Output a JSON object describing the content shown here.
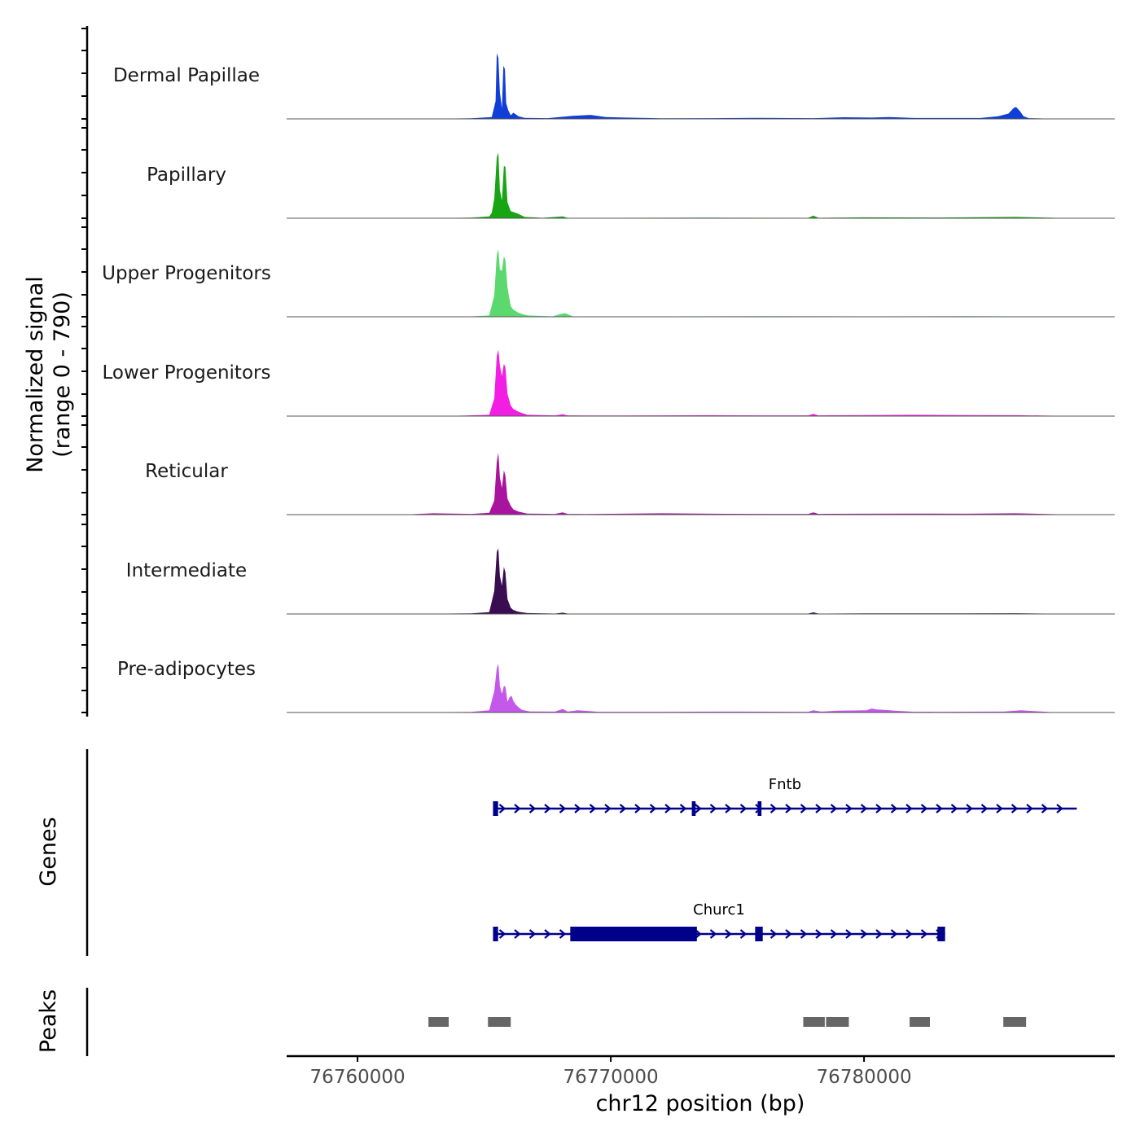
{
  "chart_data": {
    "type": "area",
    "title": "",
    "ylabel_line1": "Normalized signal",
    "ylabel_line2": "(range 0 - 790)",
    "ylim": [
      0,
      790
    ],
    "xlabel": "chr12 position (bp)",
    "xlim": [
      76757200,
      76789900
    ],
    "xticks": [
      76760000,
      76770000,
      76780000
    ],
    "xtick_labels": [
      "76760000",
      "76770000",
      "76780000"
    ],
    "tracks": [
      {
        "name": "Dermal Papillae",
        "color": "#0f3fd6",
        "x": [
          76762500,
          76763500,
          76764500,
          76765300,
          76765450,
          76765500,
          76765560,
          76765620,
          76765700,
          76765760,
          76765820,
          76765870,
          76765950,
          76766050,
          76766150,
          76766350,
          76766600,
          76767500,
          76768500,
          76769200,
          76769800,
          76772000,
          76774000,
          76775800,
          76778000,
          76779200,
          76780300,
          76781000,
          76782000,
          76784600,
          76785300,
          76785700,
          76785900,
          76786000,
          76786150,
          76786300,
          76786500,
          76787500
        ],
        "y": [
          3,
          4,
          6,
          20,
          200,
          740,
          690,
          300,
          120,
          600,
          560,
          180,
          100,
          40,
          70,
          30,
          12,
          8,
          35,
          45,
          20,
          6,
          8,
          12,
          8,
          18,
          15,
          20,
          10,
          10,
          30,
          60,
          120,
          135,
          90,
          30,
          8,
          3
        ]
      },
      {
        "name": "Papillary",
        "color": "#18a513",
        "x": [
          76762500,
          76763500,
          76764500,
          76765200,
          76765300,
          76765400,
          76765500,
          76765560,
          76765620,
          76765700,
          76765780,
          76765840,
          76765920,
          76766050,
          76766150,
          76766350,
          76766600,
          76767300,
          76768100,
          76768300,
          76770000,
          76774000,
          76777800,
          76778000,
          76778200,
          76780000,
          76783000,
          76786000,
          76788000
        ],
        "y": [
          3,
          4,
          6,
          20,
          60,
          220,
          690,
          740,
          320,
          200,
          590,
          580,
          180,
          80,
          70,
          50,
          15,
          5,
          20,
          5,
          5,
          6,
          5,
          30,
          5,
          10,
          8,
          15,
          3
        ]
      },
      {
        "name": "Upper Progenitors",
        "color": "#5bd86e",
        "x": [
          76762500,
          76764500,
          76765200,
          76765400,
          76765500,
          76765560,
          76765620,
          76765700,
          76765780,
          76765840,
          76765920,
          76766050,
          76766150,
          76766350,
          76766700,
          76767700,
          76768000,
          76768200,
          76768500,
          76772000,
          76776000,
          76780000,
          76784000,
          76787000
        ],
        "y": [
          3,
          5,
          15,
          240,
          700,
          760,
          530,
          520,
          680,
          640,
          330,
          120,
          80,
          45,
          15,
          5,
          30,
          40,
          5,
          5,
          6,
          5,
          6,
          3
        ]
      },
      {
        "name": "Lower Progenitors",
        "color": "#f21ee4",
        "x": [
          76762000,
          76764000,
          76765200,
          76765400,
          76765500,
          76765560,
          76765620,
          76765700,
          76765780,
          76765840,
          76765920,
          76766050,
          76766150,
          76766350,
          76766700,
          76767800,
          76768100,
          76768300,
          76769000,
          76772000,
          76774000,
          76776000,
          76777800,
          76778000,
          76778200,
          76780000,
          76782000,
          76784000,
          76786000,
          76788000
        ],
        "y": [
          3,
          5,
          15,
          200,
          680,
          750,
          570,
          450,
          590,
          550,
          250,
          120,
          80,
          50,
          15,
          8,
          20,
          8,
          6,
          8,
          10,
          8,
          8,
          25,
          8,
          12,
          15,
          12,
          10,
          3
        ]
      },
      {
        "name": "Reticular",
        "color": "#a8149e",
        "x": [
          76762000,
          76763000,
          76764500,
          76765200,
          76765400,
          76765500,
          76765560,
          76765620,
          76765700,
          76765780,
          76765840,
          76765920,
          76766050,
          76766150,
          76766350,
          76766700,
          76767800,
          76768100,
          76768300,
          76769000,
          76772000,
          76774000,
          76776000,
          76777800,
          76778000,
          76778200,
          76780000,
          76782000,
          76784000,
          76786000,
          76788000
        ],
        "y": [
          3,
          15,
          8,
          20,
          160,
          600,
          700,
          420,
          300,
          500,
          440,
          180,
          100,
          60,
          35,
          12,
          8,
          25,
          8,
          6,
          15,
          10,
          8,
          8,
          25,
          8,
          10,
          12,
          10,
          15,
          3
        ]
      },
      {
        "name": "Intermediate",
        "color": "#3a0c52",
        "x": [
          76762500,
          76764500,
          76765200,
          76765400,
          76765500,
          76765560,
          76765620,
          76765700,
          76765780,
          76765840,
          76765920,
          76766050,
          76766150,
          76766350,
          76766700,
          76767800,
          76768100,
          76768300,
          76772000,
          76777800,
          76778000,
          76778200,
          76780000,
          76784000,
          76786000,
          76788000
        ],
        "y": [
          3,
          6,
          20,
          260,
          700,
          740,
          430,
          320,
          530,
          470,
          170,
          70,
          45,
          25,
          10,
          5,
          15,
          5,
          5,
          5,
          18,
          5,
          6,
          6,
          8,
          3
        ]
      },
      {
        "name": "Pre-adipocytes",
        "color": "#c458eb",
        "x": [
          76762500,
          76764500,
          76765200,
          76765400,
          76765500,
          76765560,
          76765620,
          76765700,
          76765780,
          76765840,
          76765920,
          76766000,
          76766080,
          76766150,
          76766250,
          76766350,
          76766500,
          76766800,
          76767800,
          76768100,
          76768300,
          76768700,
          76769500,
          76772000,
          76775000,
          76777800,
          76778000,
          76778300,
          76779000,
          76780100,
          76780300,
          76780500,
          76780800,
          76781200,
          76782000,
          76785500,
          76786200,
          76787500
        ],
        "y": [
          3,
          6,
          25,
          240,
          500,
          550,
          300,
          210,
          300,
          290,
          120,
          170,
          190,
          130,
          90,
          60,
          30,
          12,
          10,
          40,
          10,
          25,
          8,
          8,
          10,
          8,
          25,
          10,
          20,
          25,
          45,
          35,
          30,
          20,
          8,
          10,
          25,
          3
        ]
      }
    ],
    "genes": [
      {
        "name": "Fntb",
        "start": 76765350,
        "end": 76788400,
        "exons": [
          [
            76765350,
            76765550
          ],
          [
            76773200,
            76773350
          ],
          [
            76775800,
            76775950
          ]
        ]
      },
      {
        "name": "Churc1",
        "start": 76765350,
        "end": 76783200,
        "exons": [
          [
            76765350,
            76765550
          ],
          [
            76768400,
            76773400
          ],
          [
            76775700,
            76776000
          ],
          [
            76782900,
            76783200
          ]
        ]
      }
    ],
    "peaks": [
      [
        76762800,
        76763600
      ],
      [
        76765150,
        76766050
      ],
      [
        76777600,
        76778450
      ],
      [
        76778500,
        76779400
      ],
      [
        76781800,
        76782600
      ],
      [
        76785500,
        76786400
      ]
    ],
    "panel_labels": {
      "genes": "Genes",
      "peaks": "Peaks"
    }
  },
  "colors": {
    "gene": "#00008b",
    "peak": "#666666",
    "axis": "#000000",
    "baseline": "#555555",
    "tick_label": "#4d4d4d"
  }
}
